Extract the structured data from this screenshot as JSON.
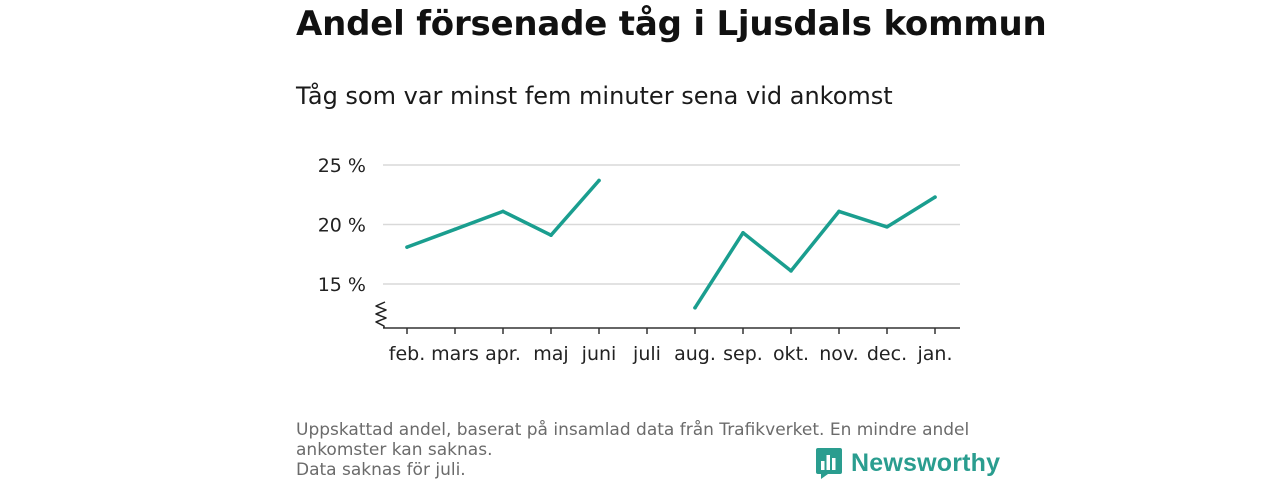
{
  "header": {
    "title": "Andel försenade tåg i Ljusdals kommun",
    "subtitle": "Tåg som var minst fem minuter sena vid ankomst"
  },
  "chart_data": {
    "type": "line",
    "categories": [
      "feb.",
      "mars",
      "apr.",
      "maj",
      "juni",
      "juli",
      "aug.",
      "sep.",
      "okt.",
      "nov.",
      "dec.",
      "jan."
    ],
    "series": [
      {
        "values": [
          18.1,
          19.6,
          21.1,
          19.1,
          23.7,
          null,
          13.0,
          19.3,
          16.1,
          21.1,
          19.8,
          22.3
        ]
      }
    ],
    "yticks": [
      15,
      20,
      25
    ],
    "ytick_labels": [
      "15 %",
      "20 %",
      "25 %"
    ],
    "ylim": [
      11.5,
      26
    ],
    "y_axis_break": true,
    "grid": true,
    "line_color": "#1a9e8f"
  },
  "footer": {
    "note_lines": [
      "Uppskattad andel, baserat på insamlad data från Trafikverket. En mindre andel",
      "ankomster kan saknas.",
      "Data saknas för juli."
    ],
    "brand": "Newsworthy",
    "brand_color": "#2a9d8f"
  }
}
